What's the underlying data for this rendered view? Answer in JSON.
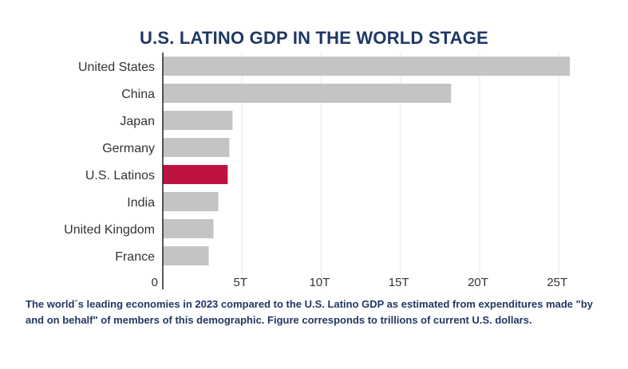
{
  "chart_data": {
    "type": "bar",
    "orientation": "horizontal",
    "title": "U.S. LATINO GDP IN THE WORLD STAGE",
    "categories": [
      "United States",
      "China",
      "Japan",
      "Germany",
      "U.S. Latinos",
      "India",
      "United Kingdom",
      "France"
    ],
    "values": [
      25.7,
      18.2,
      4.4,
      4.2,
      4.1,
      3.5,
      3.2,
      2.9
    ],
    "units": "trillions of current U.S. dollars",
    "xlim": [
      0,
      27
    ],
    "xticks": [
      0,
      5,
      10,
      15,
      20,
      25
    ],
    "xtick_labels": [
      "0",
      "5T",
      "10T",
      "15T",
      "20T",
      "25T"
    ],
    "highlight": "U.S. Latinos",
    "grid": true,
    "xlabel": "",
    "ylabel": ""
  },
  "colors": {
    "title": "#1f3864",
    "bar": "#c4c4c4",
    "highlight": "#be1340",
    "axis": "#222222",
    "grid": "#e8e8e8",
    "caption": "#1f3864"
  },
  "caption": " The world´s leading economies in 2023 compared to the U.S. Latino GDP as estimated from expenditures made \"by and on behalf\" of members of this demographic. Figure corresponds to trillions of current U.S. dollars."
}
